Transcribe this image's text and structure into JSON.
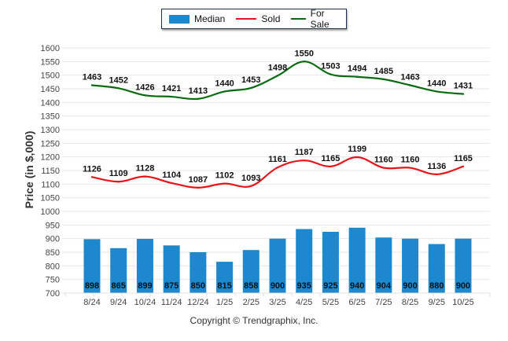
{
  "chart_data": {
    "type": "bar",
    "title": "",
    "xlabel": "",
    "ylabel": "Price (in $,000)",
    "ylim": [
      700,
      1600
    ],
    "ytick_step": 50,
    "yticks": [
      "700",
      "750",
      "800",
      "850",
      "900",
      "950",
      "1000",
      "1050",
      "1100",
      "1150",
      "1200",
      "1250",
      "1300",
      "1350",
      "1400",
      "1450",
      "1500",
      "1550",
      "1600"
    ],
    "grid": true,
    "legend_position": "top-center",
    "categories": [
      "8/24",
      "9/24",
      "10/24",
      "11/24",
      "12/24",
      "1/25",
      "2/25",
      "3/25",
      "4/25",
      "5/25",
      "6/25",
      "7/25",
      "8/25",
      "9/25",
      "10/25"
    ],
    "series": [
      {
        "name": "Median",
        "type": "bar",
        "color": "#1e88cf",
        "values": [
          898,
          865,
          899,
          875,
          850,
          815,
          858,
          900,
          935,
          925,
          940,
          904,
          900,
          880,
          900
        ]
      },
      {
        "name": "Sold",
        "type": "line",
        "color": "#e8141b",
        "values": [
          1126,
          1109,
          1128,
          1104,
          1087,
          1102,
          1093,
          1161,
          1187,
          1165,
          1199,
          1160,
          1160,
          1136,
          1165
        ]
      },
      {
        "name": "For Sale",
        "type": "line",
        "color": "#0b6b12",
        "values": [
          1463,
          1452,
          1426,
          1421,
          1413,
          1440,
          1453,
          1498,
          1550,
          1503,
          1494,
          1485,
          1463,
          1440,
          1431
        ]
      }
    ]
  },
  "legend": {
    "items": [
      {
        "label": "Median",
        "color": "#1e88cf"
      },
      {
        "label": "Sold",
        "color": "#e8141b"
      },
      {
        "label": "For Sale",
        "color": "#0b6b12"
      }
    ]
  },
  "footer": {
    "copyright": "Copyright © Trendgraphix, Inc."
  }
}
